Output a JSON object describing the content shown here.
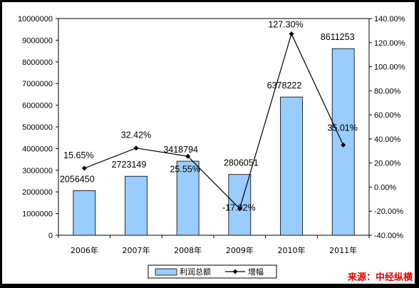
{
  "chart_data": {
    "type": "bar",
    "title": "",
    "categories": [
      "2006年",
      "2007年",
      "2008年",
      "2009年",
      "2010年",
      "2011年"
    ],
    "series": [
      {
        "name": "利润总额",
        "type": "bar",
        "axis": "left",
        "color": "#99ccff",
        "values": [
          2056450,
          2723149,
          3418794,
          2806051,
          6378222,
          8611253
        ],
        "labels": [
          "2056450",
          "2723149",
          "3418794",
          "2806051",
          "6378222",
          "8611253"
        ]
      },
      {
        "name": "增幅",
        "type": "line",
        "axis": "right",
        "color": "#000000",
        "values": [
          15.65,
          32.42,
          25.55,
          -17.92,
          127.3,
          35.01
        ],
        "labels": [
          "15.65%",
          "32.42%",
          "25.55%",
          "-17.92%",
          "127.30%",
          "35.01%"
        ]
      }
    ],
    "ylim": [
      0,
      10000000
    ],
    "y_ticks": [
      "0",
      "1000000",
      "2000000",
      "3000000",
      "4000000",
      "5000000",
      "6000000",
      "7000000",
      "8000000",
      "9000000",
      "10000000"
    ],
    "y2lim": [
      -40,
      140
    ],
    "y2_ticks": [
      "-40.00%",
      "-20.00%",
      "0.00%",
      "20.00%",
      "40.00%",
      "60.00%",
      "80.00%",
      "100.00%",
      "120.00%",
      "140.00%"
    ],
    "grid": false,
    "legend_position": "bottom"
  },
  "source_text": "来源：中经纵横"
}
